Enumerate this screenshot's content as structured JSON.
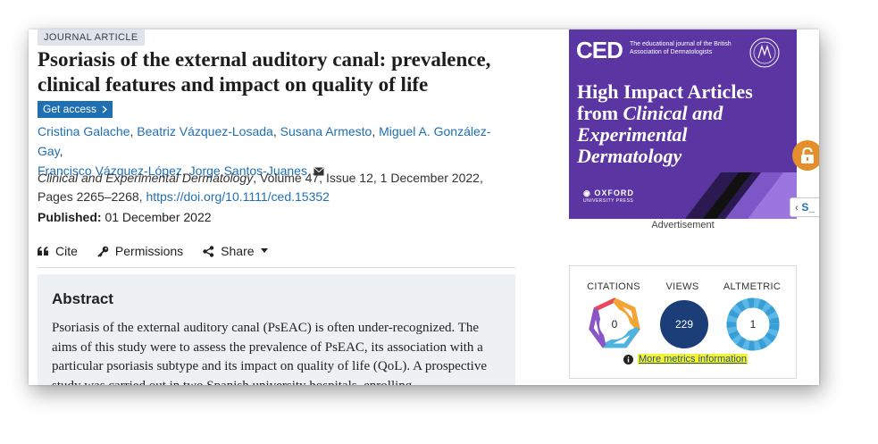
{
  "article": {
    "type_badge": "JOURNAL ARTICLE",
    "title": "Psoriasis of the external auditory canal: prevalence, clinical features and impact on quality of life",
    "get_access_label": "Get access",
    "authors_line1": [
      {
        "name": "Cristina Galache",
        "sep": ", "
      },
      {
        "name": "Beatriz Vázquez-Losada",
        "sep": ", "
      },
      {
        "name": "Susana Armesto",
        "sep": ", "
      },
      {
        "name": "Miguel A. González-Gay",
        "sep": ","
      }
    ],
    "authors_line2": [
      {
        "name": "Francisco Vázquez-López",
        "sep": ", "
      },
      {
        "name": "Jorge Santos-Juanes",
        "sep": ""
      }
    ],
    "journal_name": "Clinical and Experimental Dermatology",
    "citation_details": ", Volume 47, Issue 12, 1 December 2022, Pages 2265–2268, ",
    "doi": "https://doi.org/10.1111/ced.15352",
    "published_label": "Published:",
    "published_date": "01 December 2022"
  },
  "toolbar": {
    "cite": "Cite",
    "permissions": "Permissions",
    "share": "Share"
  },
  "abstract": {
    "heading": "Abstract",
    "text": "Psoriasis of the external auditory canal (PsEAC) is often under-recognized. The aims of this study were to assess the prevalence of PsEAC, its association with a particular psoriasis subtype and its impact on quality of life (QoL). A prospective study was carried out in two Spanish university hospitals, enrolling"
  },
  "ad": {
    "logo": "CED",
    "tagline": "The educational journal of the British Association of Dermatologists",
    "headline_plain": "High Impact Articles from",
    "headline_italic": "Clinical and Experimental Dermatology",
    "publisher": "OXFORD",
    "publisher_sub": "UNIVERSITY PRESS",
    "label": "Advertisement",
    "bg_color": "#5b36a2"
  },
  "side_tab": {
    "label": "S_"
  },
  "metrics": {
    "citations_label": "CITATIONS",
    "citations_value": "0",
    "views_label": "VIEWS",
    "views_value": "229",
    "altmetric_label": "ALTMETRIC",
    "altmetric_value": "1",
    "more_link": "More metrics information"
  },
  "icons": [
    "mail-icon",
    "quote-icon",
    "key-icon",
    "share-icon",
    "caret-down-icon",
    "lock-icon",
    "info-icon",
    "chevron-right-icon",
    "chevron-left-icon"
  ],
  "colors": {
    "link": "#1f6fb3",
    "access_btn": "#1f6fb3",
    "lock": "#e48f29",
    "highlight": "#f6f42c",
    "views_circle": "#1b3d78"
  }
}
